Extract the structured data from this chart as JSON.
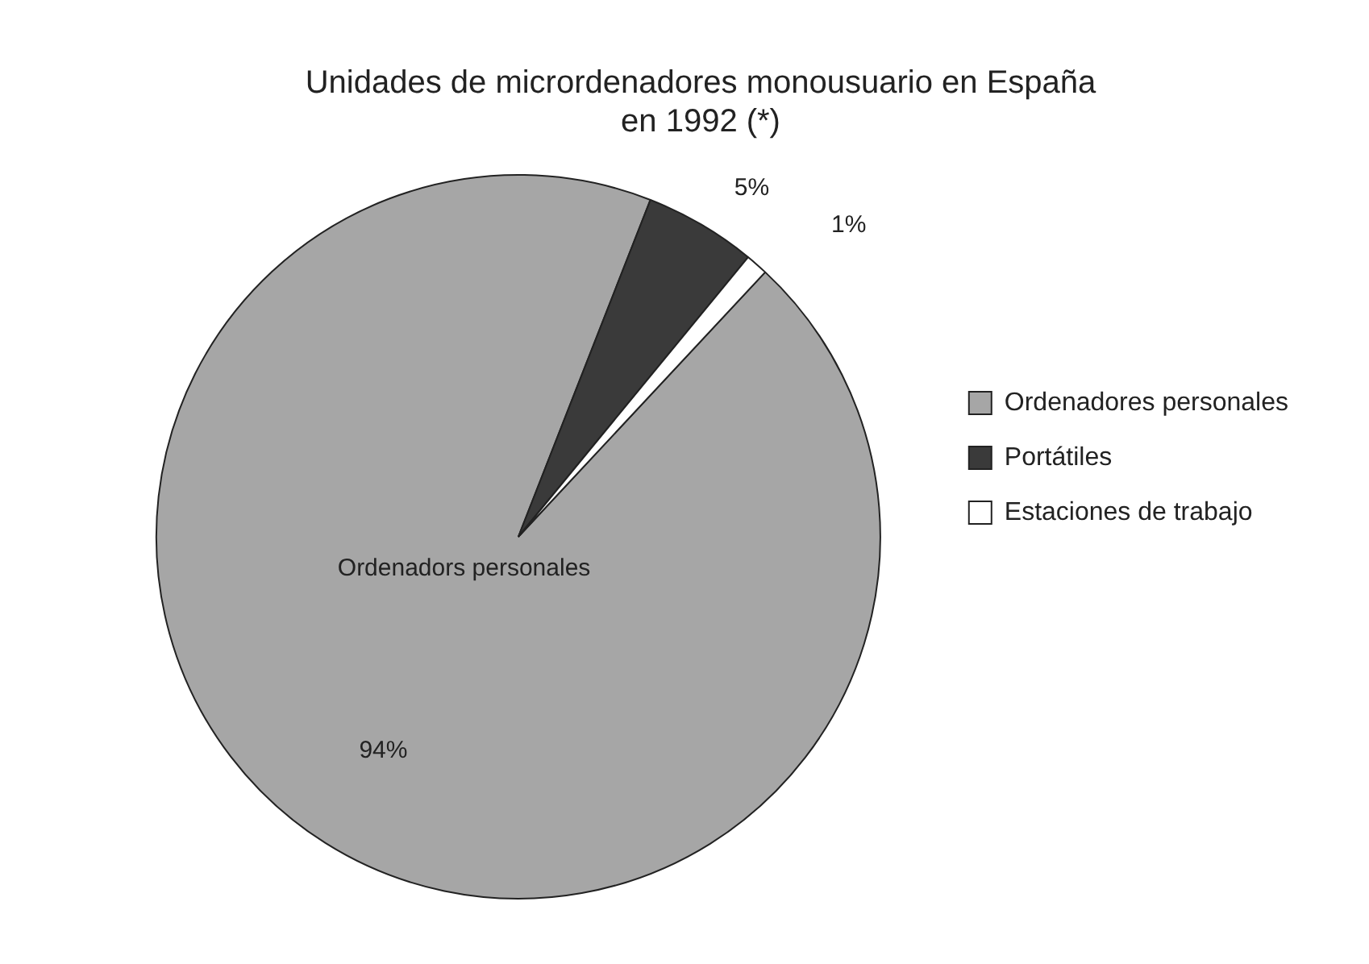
{
  "chart_data": {
    "type": "pie",
    "title": "Unidades de micrordenadores monousuario en España en 1992 (*)",
    "categories": [
      "Ordenadores personales",
      "Portátiles",
      "Estaciones de trabajo"
    ],
    "values": [
      94,
      5,
      1
    ],
    "colors": [
      "#a6a6a6",
      "#3a3a3a",
      "#ffffff"
    ],
    "value_labels": [
      "94%",
      "5%",
      "1%"
    ],
    "annotations": [
      "Ordenadors personales"
    ],
    "legend": "right"
  }
}
